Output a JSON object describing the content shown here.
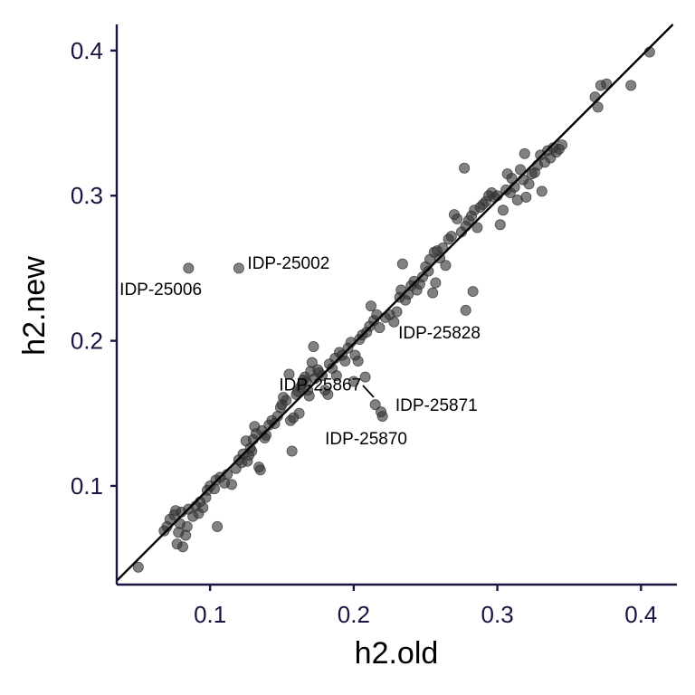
{
  "chart_data": {
    "type": "scatter",
    "title": "",
    "xlabel": "h2.old",
    "ylabel": "h2.new",
    "xlim": [
      0.035,
      0.425
    ],
    "ylim": [
      0.032,
      0.418
    ],
    "xticks": [
      "0.1",
      "0.2",
      "0.3",
      "0.4"
    ],
    "yticks": [
      "0.1",
      "0.2",
      "0.3",
      "0.4"
    ],
    "grid": false,
    "legend": "none",
    "point_color": "#333333",
    "line_color": "#000000",
    "axis_color": "#1a1440",
    "reference_line": {
      "slope": 0.99,
      "intercept": 0.0
    },
    "points": [
      [
        0.05,
        0.044
      ],
      [
        0.068,
        0.069
      ],
      [
        0.07,
        0.072
      ],
      [
        0.072,
        0.077
      ],
      [
        0.075,
        0.08
      ],
      [
        0.076,
        0.083
      ],
      [
        0.077,
        0.06
      ],
      [
        0.078,
        0.068
      ],
      [
        0.079,
        0.074
      ],
      [
        0.08,
        0.082
      ],
      [
        0.081,
        0.058
      ],
      [
        0.083,
        0.066
      ],
      [
        0.084,
        0.072
      ],
      [
        0.085,
        0.084
      ],
      [
        0.088,
        0.079
      ],
      [
        0.09,
        0.086
      ],
      [
        0.092,
        0.081
      ],
      [
        0.093,
        0.089
      ],
      [
        0.095,
        0.085
      ],
      [
        0.097,
        0.092
      ],
      [
        0.098,
        0.097
      ],
      [
        0.1,
        0.1
      ],
      [
        0.103,
        0.098
      ],
      [
        0.104,
        0.104
      ],
      [
        0.105,
        0.072
      ],
      [
        0.107,
        0.106
      ],
      [
        0.11,
        0.102
      ],
      [
        0.112,
        0.108
      ],
      [
        0.115,
        0.101
      ],
      [
        0.118,
        0.112
      ],
      [
        0.12,
        0.118
      ],
      [
        0.122,
        0.116
      ],
      [
        0.123,
        0.122
      ],
      [
        0.125,
        0.131
      ],
      [
        0.126,
        0.117
      ],
      [
        0.127,
        0.121
      ],
      [
        0.128,
        0.126
      ],
      [
        0.129,
        0.124
      ],
      [
        0.13,
        0.132
      ],
      [
        0.131,
        0.141
      ],
      [
        0.132,
        0.136
      ],
      [
        0.134,
        0.113
      ],
      [
        0.135,
        0.111
      ],
      [
        0.136,
        0.138
      ],
      [
        0.138,
        0.133
      ],
      [
        0.139,
        0.135
      ],
      [
        0.141,
        0.142
      ],
      [
        0.143,
        0.145
      ],
      [
        0.145,
        0.143
      ],
      [
        0.147,
        0.148
      ],
      [
        0.149,
        0.154
      ],
      [
        0.15,
        0.156
      ],
      [
        0.151,
        0.161
      ],
      [
        0.153,
        0.159
      ],
      [
        0.155,
        0.177
      ],
      [
        0.156,
        0.145
      ],
      [
        0.157,
        0.124
      ],
      [
        0.158,
        0.147
      ],
      [
        0.16,
        0.163
      ],
      [
        0.161,
        0.165
      ],
      [
        0.162,
        0.15
      ],
      [
        0.163,
        0.168
      ],
      [
        0.164,
        0.17
      ],
      [
        0.165,
        0.173
      ],
      [
        0.166,
        0.175
      ],
      [
        0.167,
        0.172
      ],
      [
        0.168,
        0.166
      ],
      [
        0.169,
        0.162
      ],
      [
        0.17,
        0.179
      ],
      [
        0.171,
        0.185
      ],
      [
        0.172,
        0.196
      ],
      [
        0.173,
        0.174
      ],
      [
        0.175,
        0.18
      ],
      [
        0.176,
        0.178
      ],
      [
        0.178,
        0.176
      ],
      [
        0.18,
        0.166
      ],
      [
        0.182,
        0.163
      ],
      [
        0.183,
        0.184
      ],
      [
        0.185,
        0.181
      ],
      [
        0.187,
        0.188
      ],
      [
        0.188,
        0.176
      ],
      [
        0.19,
        0.192
      ],
      [
        0.192,
        0.19
      ],
      [
        0.194,
        0.186
      ],
      [
        0.196,
        0.195
      ],
      [
        0.198,
        0.199
      ],
      [
        0.2,
        0.172
      ],
      [
        0.201,
        0.19
      ],
      [
        0.203,
        0.186
      ],
      [
        0.204,
        0.201
      ],
      [
        0.206,
        0.204
      ],
      [
        0.208,
        0.175
      ],
      [
        0.209,
        0.206
      ],
      [
        0.211,
        0.21
      ],
      [
        0.212,
        0.224
      ],
      [
        0.214,
        0.214
      ],
      [
        0.215,
        0.156
      ],
      [
        0.216,
        0.218
      ],
      [
        0.218,
        0.209
      ],
      [
        0.219,
        0.151
      ],
      [
        0.22,
        0.148
      ],
      [
        0.222,
        0.216
      ],
      [
        0.225,
        0.218
      ],
      [
        0.228,
        0.213
      ],
      [
        0.23,
        0.22
      ],
      [
        0.232,
        0.23
      ],
      [
        0.233,
        0.235
      ],
      [
        0.234,
        0.253
      ],
      [
        0.236,
        0.228
      ],
      [
        0.238,
        0.232
      ],
      [
        0.24,
        0.238
      ],
      [
        0.242,
        0.241
      ],
      [
        0.244,
        0.235
      ],
      [
        0.246,
        0.239
      ],
      [
        0.248,
        0.244
      ],
      [
        0.25,
        0.251
      ],
      [
        0.252,
        0.248
      ],
      [
        0.253,
        0.256
      ],
      [
        0.255,
        0.233
      ],
      [
        0.256,
        0.261
      ],
      [
        0.257,
        0.24
      ],
      [
        0.258,
        0.262
      ],
      [
        0.26,
        0.257
      ],
      [
        0.262,
        0.264
      ],
      [
        0.264,
        0.252
      ],
      [
        0.266,
        0.27
      ],
      [
        0.268,
        0.272
      ],
      [
        0.27,
        0.287
      ],
      [
        0.272,
        0.284
      ],
      [
        0.275,
        0.275
      ],
      [
        0.277,
        0.319
      ],
      [
        0.278,
        0.279
      ],
      [
        0.28,
        0.283
      ],
      [
        0.282,
        0.286
      ],
      [
        0.284,
        0.29
      ],
      [
        0.286,
        0.278
      ],
      [
        0.288,
        0.292
      ],
      [
        0.29,
        0.294
      ],
      [
        0.292,
        0.296
      ],
      [
        0.294,
        0.3
      ],
      [
        0.296,
        0.302
      ],
      [
        0.298,
        0.299
      ],
      [
        0.3,
        0.3
      ],
      [
        0.302,
        0.28
      ],
      [
        0.304,
        0.29
      ],
      [
        0.306,
        0.304
      ],
      [
        0.307,
        0.315
      ],
      [
        0.309,
        0.302
      ],
      [
        0.31,
        0.312
      ],
      [
        0.312,
        0.306
      ],
      [
        0.314,
        0.297
      ],
      [
        0.316,
        0.318
      ],
      [
        0.318,
        0.311
      ],
      [
        0.319,
        0.329
      ],
      [
        0.32,
        0.299
      ],
      [
        0.322,
        0.308
      ],
      [
        0.324,
        0.315
      ],
      [
        0.326,
        0.316
      ],
      [
        0.328,
        0.321
      ],
      [
        0.33,
        0.328
      ],
      [
        0.331,
        0.303
      ],
      [
        0.333,
        0.323
      ],
      [
        0.335,
        0.331
      ],
      [
        0.337,
        0.326
      ],
      [
        0.339,
        0.333
      ],
      [
        0.341,
        0.33
      ],
      [
        0.343,
        0.332
      ],
      [
        0.345,
        0.335
      ],
      [
        0.368,
        0.368
      ],
      [
        0.37,
        0.361
      ],
      [
        0.372,
        0.376
      ],
      [
        0.376,
        0.377
      ],
      [
        0.393,
        0.376
      ],
      [
        0.406,
        0.399
      ],
      [
        0.085,
        0.25
      ],
      [
        0.12,
        0.25
      ],
      [
        0.278,
        0.221
      ],
      [
        0.283,
        0.234
      ]
    ],
    "annotations": [
      {
        "text": "IDP-25002",
        "x": 0.126,
        "y": 0.254
      },
      {
        "text": "IDP-25006",
        "x": 0.037,
        "y": 0.236
      },
      {
        "text": "IDP-25828",
        "x": 0.231,
        "y": 0.206
      },
      {
        "text": "IDP-25867",
        "x": 0.148,
        "y": 0.17
      },
      {
        "text": "IDP-25871",
        "x": 0.229,
        "y": 0.156
      },
      {
        "text": "IDP-25870",
        "x": 0.18,
        "y": 0.133
      }
    ]
  }
}
